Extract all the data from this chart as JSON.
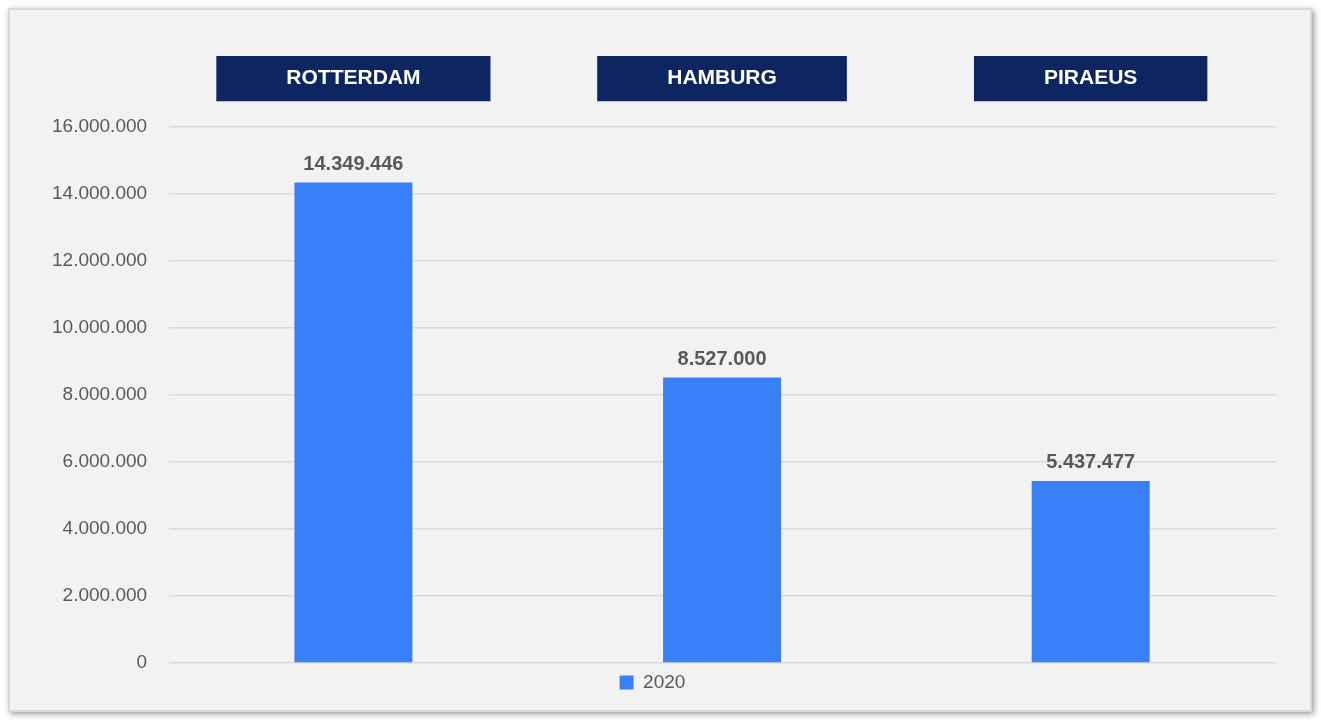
{
  "chart_data": {
    "type": "bar",
    "categories": [
      "ROTTERDAM",
      "HAMBURG",
      "PIRAEUS"
    ],
    "series": [
      {
        "name": "2020",
        "color": "#3a7ffa",
        "values": [
          14349446,
          8527000,
          5437477
        ],
        "value_labels": [
          "14.349.446",
          "8.527.000",
          "5.437.477"
        ]
      }
    ],
    "ylim": [
      0,
      16000000
    ],
    "yticks": [
      {
        "value": 0,
        "label": "0"
      },
      {
        "value": 2000000,
        "label": "2.000.000"
      },
      {
        "value": 4000000,
        "label": "4.000.000"
      },
      {
        "value": 6000000,
        "label": "6.000.000"
      },
      {
        "value": 8000000,
        "label": "8.000.000"
      },
      {
        "value": 10000000,
        "label": "10.000.000"
      },
      {
        "value": 12000000,
        "label": "12.000.000"
      },
      {
        "value": 14000000,
        "label": "14.000.000"
      },
      {
        "value": 16000000,
        "label": "16.000.000"
      }
    ],
    "grid": "y",
    "legend": "bottom"
  }
}
